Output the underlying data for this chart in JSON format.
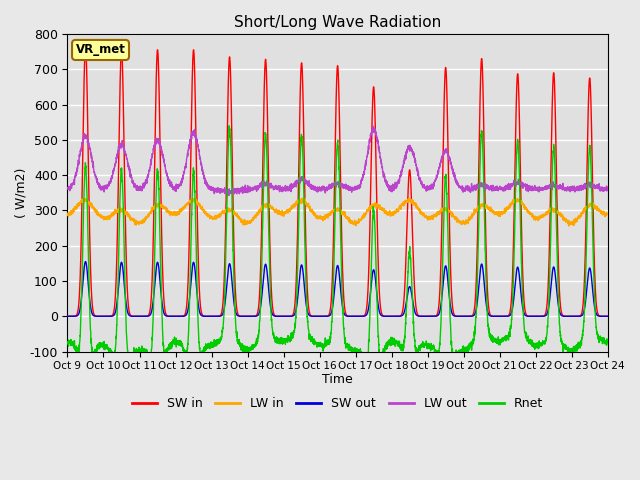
{
  "title": "Short/Long Wave Radiation",
  "xlabel": "Time",
  "ylabel": "( W/m2)",
  "ylim": [
    -100,
    800
  ],
  "n_days": 15,
  "fig_bg": "#e8e8e8",
  "ax_bg": "#e0e0e0",
  "grid_color": "#ffffff",
  "colors": {
    "SW_in": "#ff0000",
    "LW_in": "#ffa500",
    "SW_out": "#0000dd",
    "LW_out": "#bb44cc",
    "Rnet": "#00cc00"
  },
  "xtick_labels": [
    "Oct 9",
    "Oct 10",
    "Oct 11",
    "Oct 12",
    "Oct 13",
    "Oct 14",
    "Oct 15",
    "Oct 16",
    "Oct 17",
    "Oct 18",
    "Oct 19",
    "Oct 20",
    "Oct 21",
    "Oct 22",
    "Oct 23",
    "Oct 24"
  ],
  "ytick_values": [
    -100,
    0,
    100,
    200,
    300,
    400,
    500,
    600,
    700,
    800
  ],
  "station_label": "VR_met",
  "legend_entries": [
    "SW in",
    "LW in",
    "SW out",
    "LW out",
    "Rnet"
  ],
  "SW_in_peaks": [
    765,
    755,
    755,
    755,
    735,
    728,
    718,
    710,
    650,
    415,
    705,
    730,
    687,
    690,
    675
  ],
  "LW_out_peaks": [
    510,
    485,
    500,
    520,
    352,
    375,
    388,
    375,
    530,
    480,
    468,
    370,
    378,
    370,
    372
  ],
  "LW_in_base": 270,
  "LW_out_base": 360,
  "SW_out_peak": 155,
  "Rnet_night": -75
}
